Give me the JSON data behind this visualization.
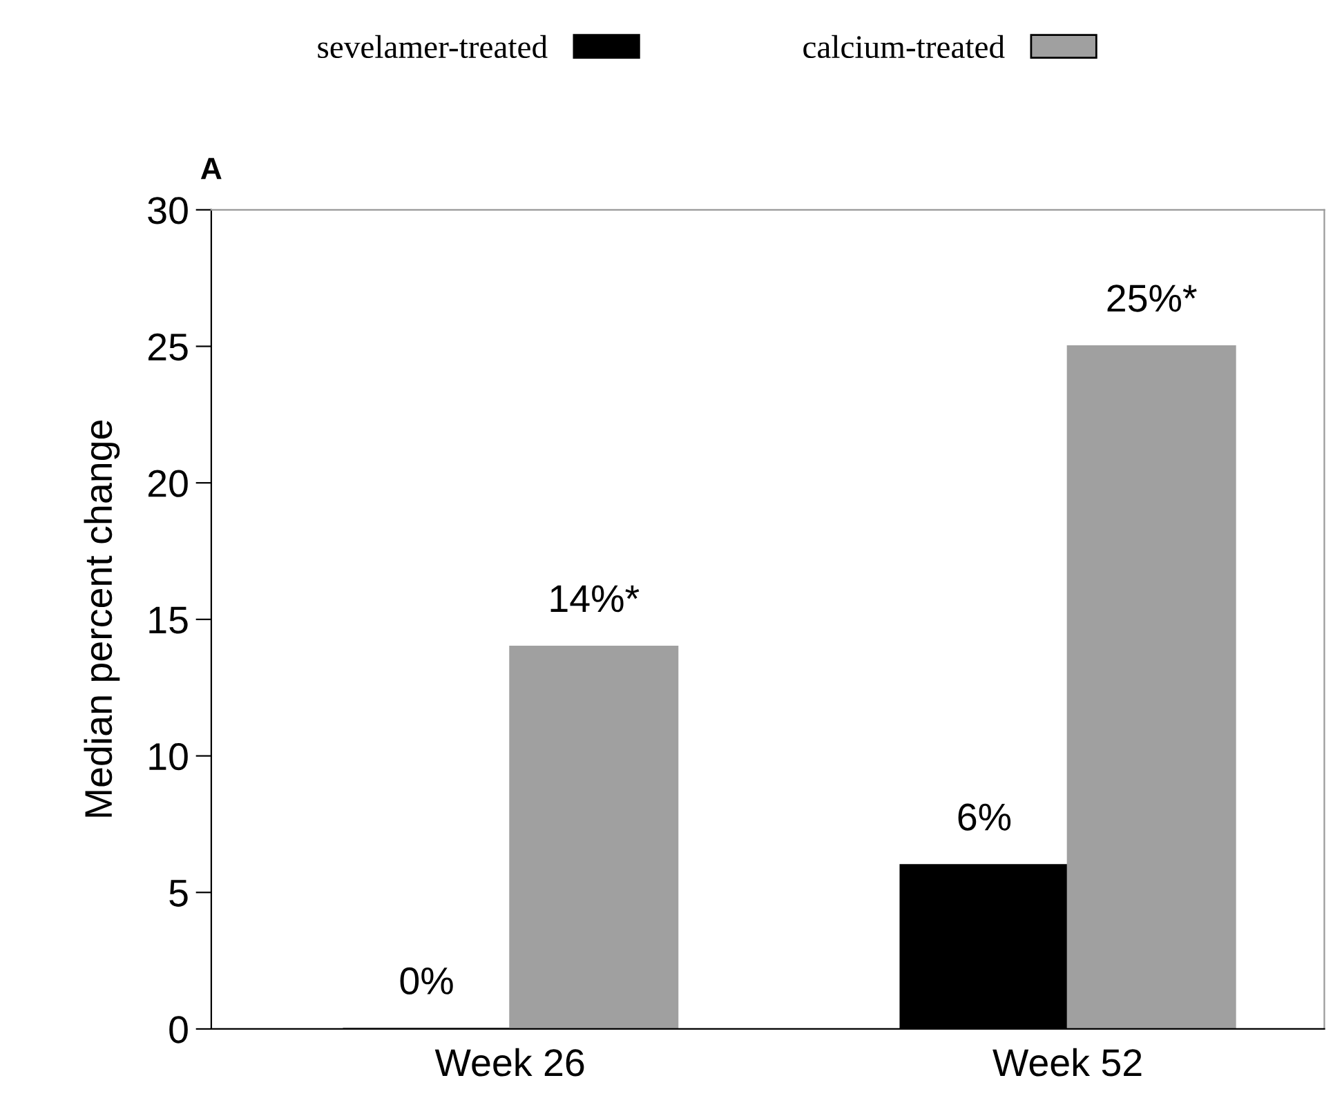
{
  "chart_data": {
    "type": "bar",
    "title": "A",
    "ylabel": "Median percent change",
    "categories": [
      "Week 26",
      "Week 52"
    ],
    "series": [
      {
        "name": "sevelamer-treated",
        "color": "#000000",
        "values": [
          0,
          6
        ],
        "value_labels": [
          "0%",
          "6%"
        ]
      },
      {
        "name": "calcium-treated",
        "color": "#a0a0a0",
        "values": [
          14,
          25
        ],
        "value_labels": [
          "14%*",
          "25%*"
        ]
      }
    ],
    "ylim": [
      0,
      30
    ],
    "yticks": [
      0,
      5,
      10,
      15,
      20,
      25,
      30
    ],
    "grid": false,
    "legend": "top"
  }
}
